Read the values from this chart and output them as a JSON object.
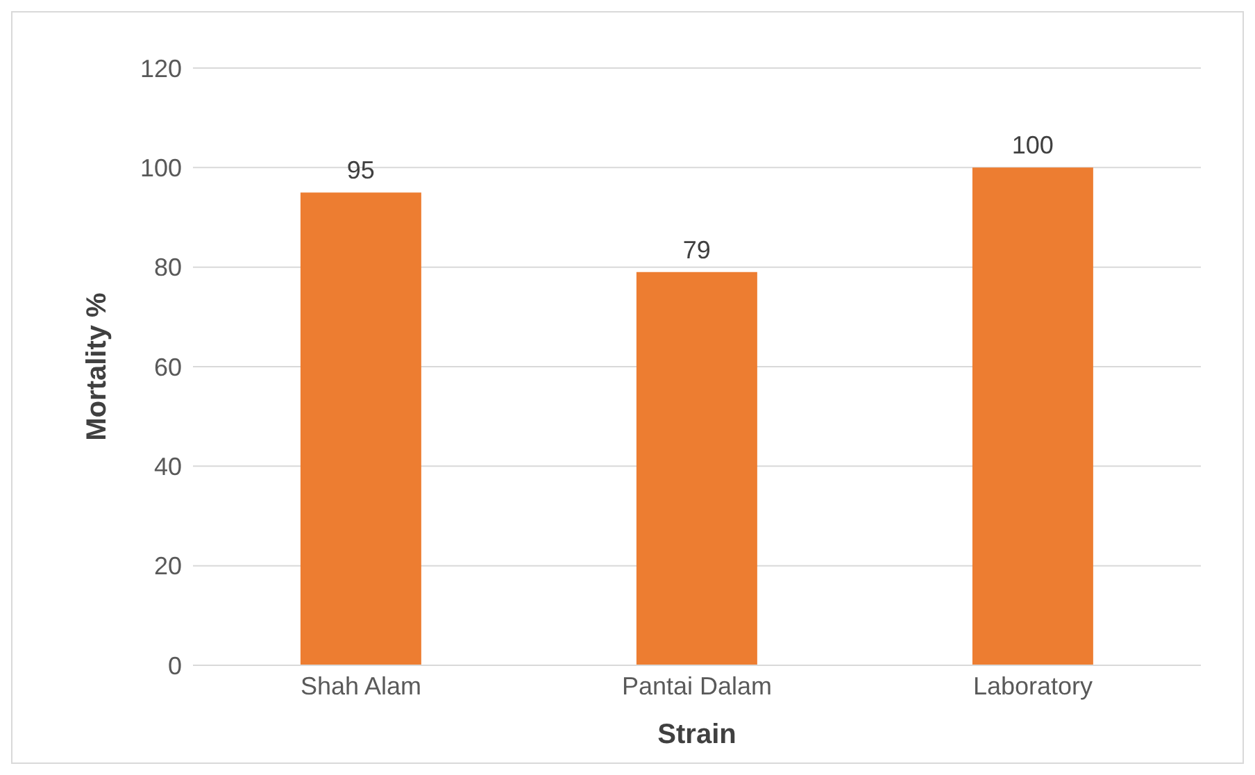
{
  "chart_data": {
    "type": "bar",
    "xlabel": "Strain",
    "ylabel": "Mortality %",
    "categories": [
      "Shah Alam",
      "Pantai Dalam",
      "Laboratory"
    ],
    "values": [
      95,
      79,
      100
    ],
    "color": "#ed7d31",
    "ylim": [
      0,
      120
    ],
    "yticks": [
      0,
      20,
      40,
      60,
      80,
      100,
      120
    ],
    "grid": "y",
    "data_labels": true
  }
}
